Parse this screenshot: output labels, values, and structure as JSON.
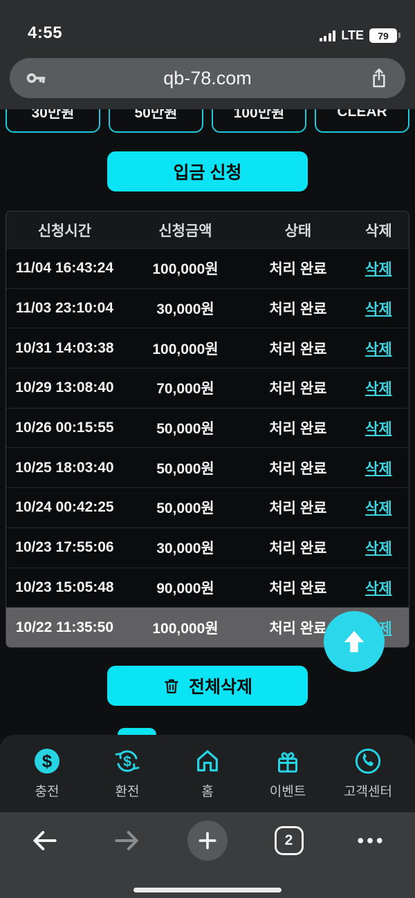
{
  "status_bar": {
    "time": "4:55",
    "network": "LTE",
    "battery": "79"
  },
  "url_bar": {
    "url": "qb-78.com"
  },
  "quick_buttons": [
    {
      "label": "30만원"
    },
    {
      "label": "50만원"
    },
    {
      "label": "100만원"
    },
    {
      "label": "CLEAR"
    }
  ],
  "deposit_button": {
    "label": "입금 신청"
  },
  "table": {
    "headers": {
      "time": "신청시간",
      "amount": "신청금액",
      "status": "상태",
      "action": "삭제"
    },
    "rows": [
      {
        "time": "11/04 16:43:24",
        "amount": "100,000원",
        "status": "처리 완료",
        "action": "삭제",
        "highlight": false
      },
      {
        "time": "11/03 23:10:04",
        "amount": "30,000원",
        "status": "처리 완료",
        "action": "삭제",
        "highlight": false
      },
      {
        "time": "10/31 14:03:38",
        "amount": "100,000원",
        "status": "처리 완료",
        "action": "삭제",
        "highlight": false
      },
      {
        "time": "10/29 13:08:40",
        "amount": "70,000원",
        "status": "처리 완료",
        "action": "삭제",
        "highlight": false
      },
      {
        "time": "10/26 00:15:55",
        "amount": "50,000원",
        "status": "처리 완료",
        "action": "삭제",
        "highlight": false
      },
      {
        "time": "10/25 18:03:40",
        "amount": "50,000원",
        "status": "처리 완료",
        "action": "삭제",
        "highlight": false
      },
      {
        "time": "10/24 00:42:25",
        "amount": "50,000원",
        "status": "처리 완료",
        "action": "삭제",
        "highlight": false
      },
      {
        "time": "10/23 17:55:06",
        "amount": "30,000원",
        "status": "처리 완료",
        "action": "삭제",
        "highlight": false
      },
      {
        "time": "10/23 15:05:48",
        "amount": "90,000원",
        "status": "처리 완료",
        "action": "삭제",
        "highlight": false
      },
      {
        "time": "10/22 11:35:50",
        "amount": "100,000원",
        "status": "처리 완료",
        "action": "삭제",
        "highlight": true
      }
    ]
  },
  "delete_all_button": {
    "label": "전체삭제"
  },
  "bottom_nav": {
    "items": [
      {
        "label": "충전"
      },
      {
        "label": "환전"
      },
      {
        "label": "홈"
      },
      {
        "label": "이벤트"
      },
      {
        "label": "고객센터"
      }
    ]
  },
  "browser_toolbar": {
    "tab_count": "2"
  },
  "colors": {
    "accent_cyan": "#0ae4f4",
    "icon_cyan": "#26d4e4",
    "link_cyan": "#3fd6e2",
    "highlight_row": "#606063",
    "chrome_bg": "#2c2e30",
    "toolbar_bg": "#3a3c3e"
  }
}
